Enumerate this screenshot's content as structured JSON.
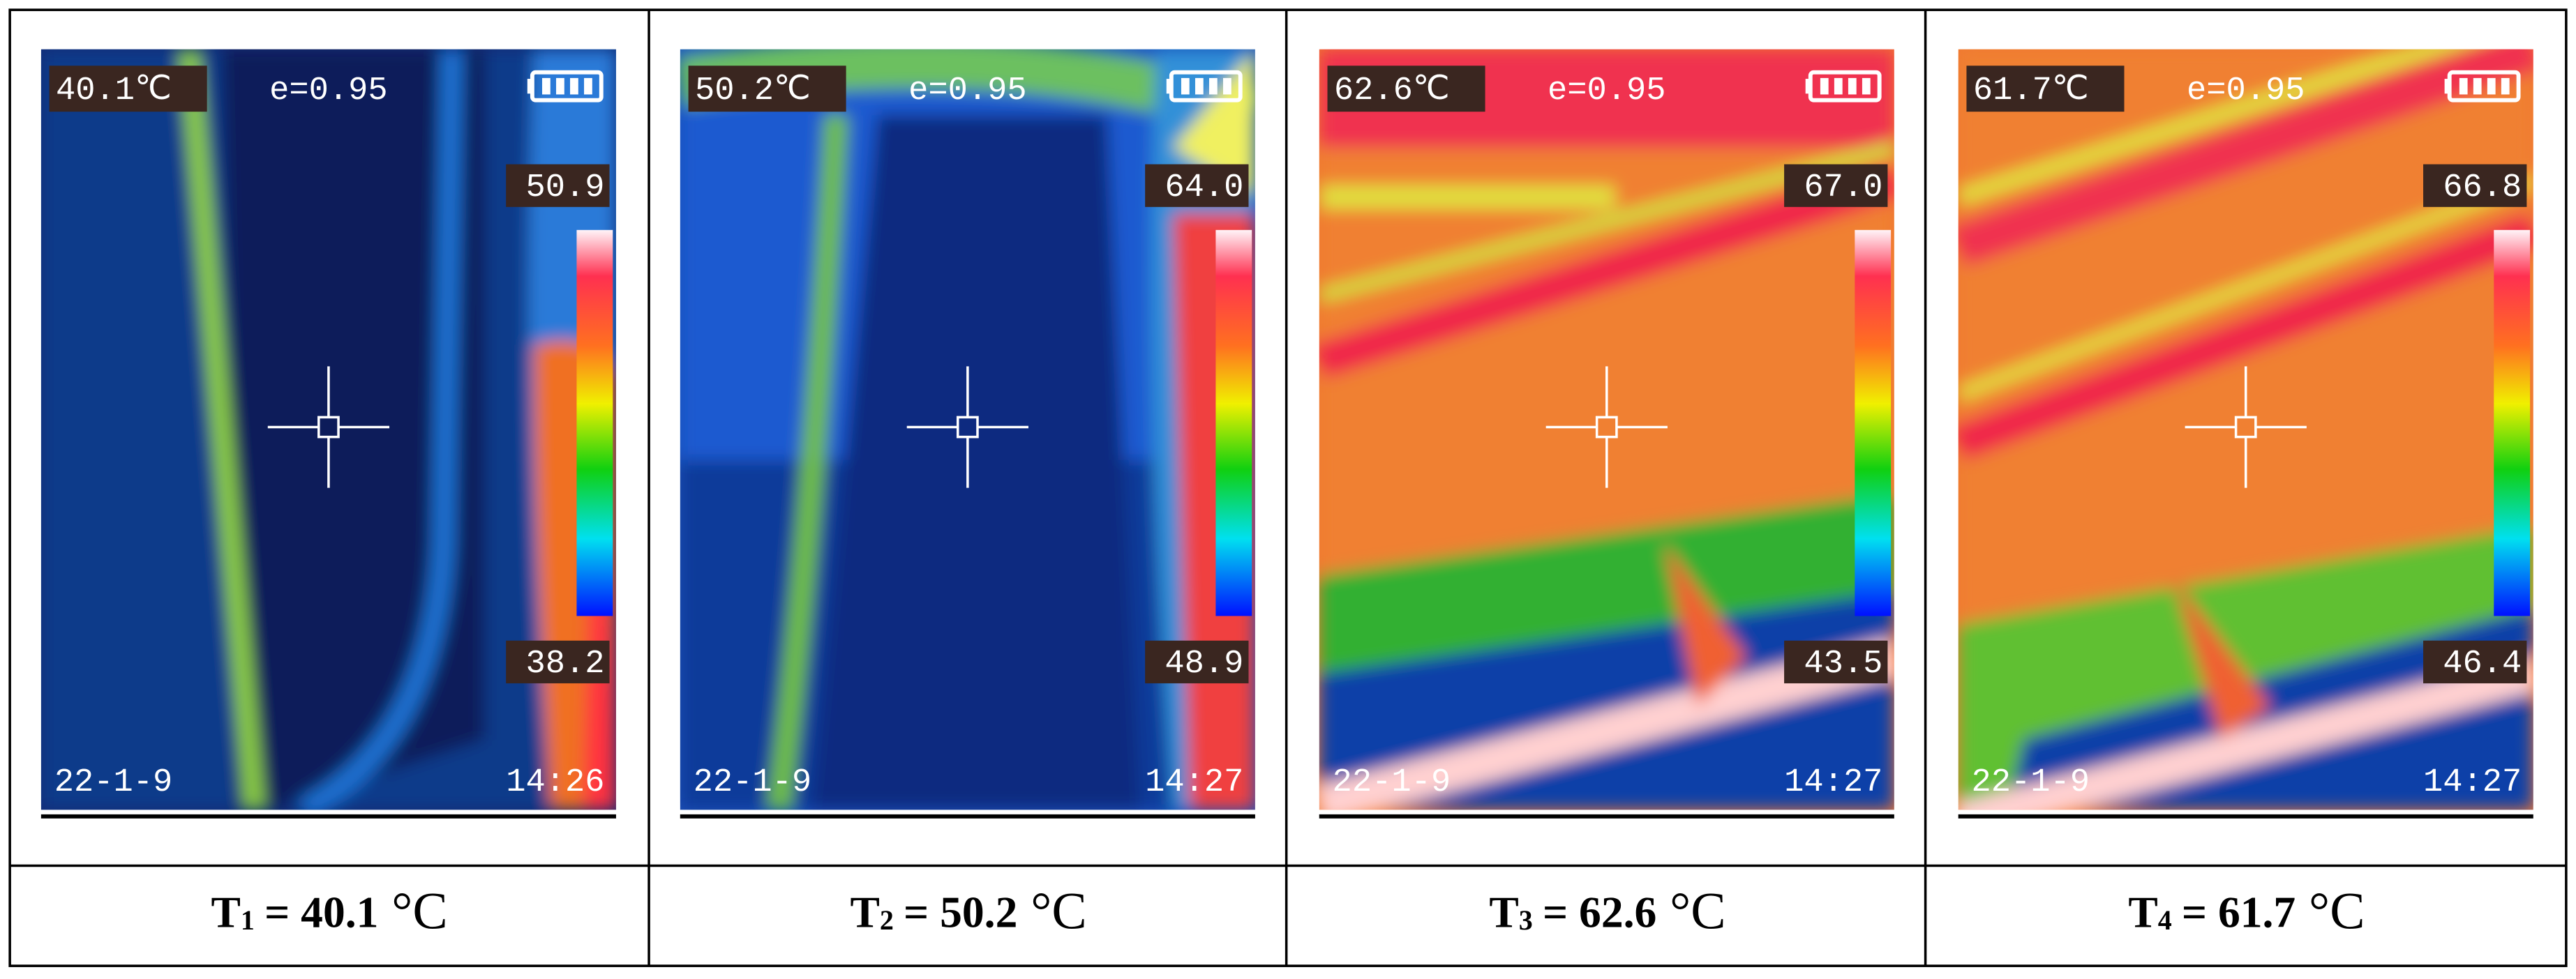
{
  "panels": [
    {
      "temperature": "40.1℃",
      "emissivity": "e=0.95",
      "max": "50.9",
      "min": "38.2",
      "date": "22-1-9",
      "time": "14:26",
      "caption": {
        "symbol": "T",
        "subscript": "1",
        "value": "= 40.1",
        "unit": "°C"
      }
    },
    {
      "temperature": "50.2℃",
      "emissivity": "e=0.95",
      "max": "64.0",
      "min": "48.9",
      "date": "22-1-9",
      "time": "14:27",
      "caption": {
        "symbol": "T",
        "subscript": "2",
        "value": "= 50.2",
        "unit": "°C"
      }
    },
    {
      "temperature": "62.6℃",
      "emissivity": "e=0.95",
      "max": "67.0",
      "min": "43.5",
      "date": "22-1-9",
      "time": "14:27",
      "caption": {
        "symbol": "T",
        "subscript": "3",
        "value": "= 62.6",
        "unit": "°C"
      }
    },
    {
      "temperature": "61.7℃",
      "emissivity": "e=0.95",
      "max": "66.8",
      "min": "46.4",
      "date": "22-1-9",
      "time": "14:27",
      "caption": {
        "symbol": "T",
        "subscript": "4",
        "value": "= 61.7",
        "unit": "°C"
      }
    }
  ]
}
